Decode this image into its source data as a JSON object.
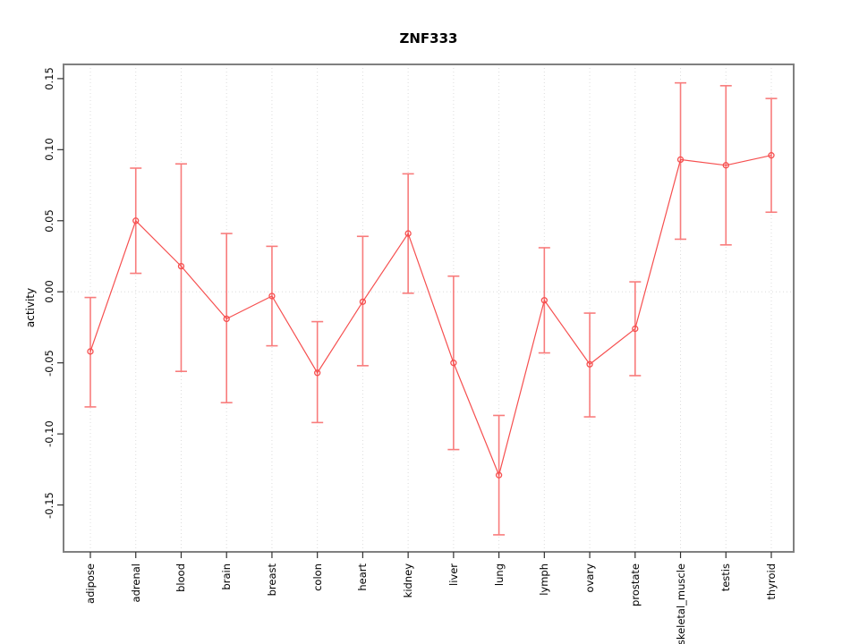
{
  "chart_data": {
    "type": "line",
    "title": "ZNF333",
    "ylabel": "activity",
    "xlabel": "",
    "categories": [
      "adipose",
      "adrenal",
      "blood",
      "brain",
      "breast",
      "colon",
      "heart",
      "kidney",
      "liver",
      "lung",
      "lymph",
      "ovary",
      "prostate",
      "skeletal_muscle",
      "testis",
      "thyroid"
    ],
    "series": [
      {
        "name": "activity",
        "values": [
          -0.042,
          0.05,
          0.018,
          -0.019,
          -0.003,
          -0.057,
          -0.007,
          0.041,
          -0.05,
          -0.129,
          -0.006,
          -0.051,
          -0.026,
          0.093,
          0.089,
          0.096
        ],
        "error_lower": [
          -0.081,
          0.013,
          -0.056,
          -0.078,
          -0.038,
          -0.092,
          -0.052,
          -0.001,
          -0.111,
          -0.171,
          -0.043,
          -0.088,
          -0.059,
          0.037,
          0.033,
          0.056
        ],
        "error_upper": [
          -0.004,
          0.087,
          0.09,
          0.041,
          0.032,
          -0.021,
          0.039,
          0.083,
          0.011,
          -0.087,
          0.031,
          -0.015,
          0.007,
          0.147,
          0.145,
          0.136
        ]
      }
    ],
    "yticks": [
      -0.15,
      -0.1,
      -0.05,
      0.0,
      0.05,
      0.1,
      0.15
    ],
    "ytick_labels": [
      "-0.15",
      "-0.10",
      "-0.05",
      "0.00",
      "0.05",
      "0.10",
      "0.15"
    ],
    "ylim": [
      -0.183,
      0.16
    ],
    "grid": {
      "vertical": "dotted line at every category",
      "horizontal": "dotted line at y=0 only"
    },
    "legend": "none",
    "marker": "open-circle",
    "colors": {
      "line": "#f64f4f",
      "point": "#f64f4f",
      "error_bar": "#f87c7c",
      "grid": "#dcdcdc",
      "frame": "#808080",
      "tick": "#303030",
      "text": "#000000",
      "background": "#ffffff"
    }
  }
}
